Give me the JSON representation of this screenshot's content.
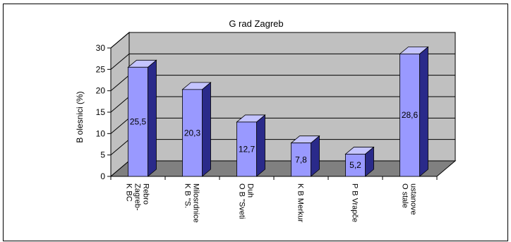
{
  "chart_data": {
    "type": "bar",
    "title": "G rad Zagreb",
    "xlabel": "",
    "ylabel": "B olesnici (%)",
    "ylim": [
      0,
      30
    ],
    "yticks": [
      0,
      5,
      10,
      15,
      20,
      25,
      30
    ],
    "grid": true,
    "categories": [
      "K BC Zagreb-Rebro",
      "K B \"S. Milosrdnice",
      "O B \"Sveti Duh",
      "K B Merkur",
      "P B Vrapče",
      "O stale ustanove"
    ],
    "category_lines": [
      [
        "K BC",
        "Zagreb-",
        "Rebro"
      ],
      [
        "K B \"S.",
        "Milosrdnice"
      ],
      [
        "O B \"Sveti",
        "Duh"
      ],
      [
        "K B Merkur"
      ],
      [
        "P B Vrapče"
      ],
      [
        "O stale",
        "ustanove"
      ]
    ],
    "values": [
      25.5,
      20.3,
      12.7,
      7.8,
      5.2,
      28.6
    ],
    "data_labels": [
      "25,5",
      "20,3",
      "12,7",
      "7,8",
      "5,2",
      "28,6"
    ],
    "colors": {
      "bar_front": "#9999ff",
      "bar_side": "#2a2a8a",
      "bar_top": "#c4c4ff",
      "back_wall": "#c0c0c0",
      "floor": "#808080",
      "gridline": "#000000"
    }
  }
}
